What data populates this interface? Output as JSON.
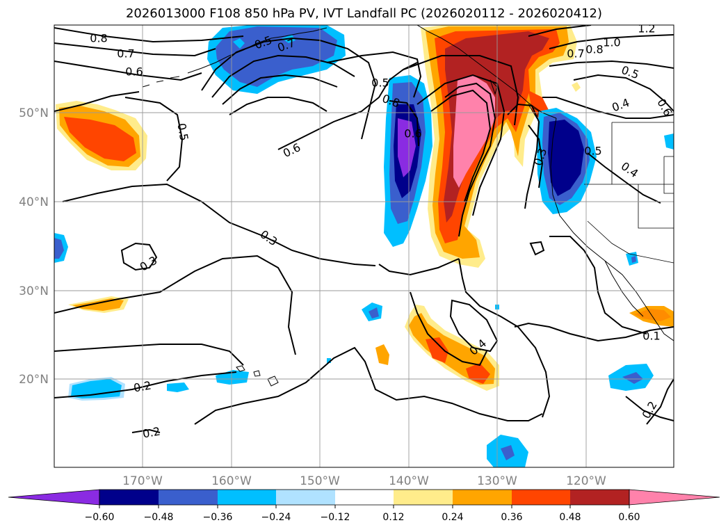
{
  "title": "2026013000 F108 850 hPa PV, IVT Landfall PC (2026020112 - 2026020412)",
  "map": {
    "lat_labels": [
      "50°N",
      "40°N",
      "30°N",
      "20°N"
    ],
    "lon_labels": [
      "170°W",
      "160°W",
      "150°W",
      "140°W",
      "130°W",
      "120°W"
    ],
    "contour_labels": [
      "0.8",
      "0.7",
      "0.6",
      "0.5",
      "0.5",
      "0.7",
      "0.6",
      "0.8",
      "0.6",
      "0.5",
      "0.3",
      "0.3",
      "0.4",
      "0.2",
      "0.2",
      "1.2",
      "0.8",
      "1.0",
      "0.7",
      "0.5",
      "0.4",
      "0.6",
      "0.5",
      "0.3",
      "0.4",
      "0.2",
      "0.1"
    ]
  },
  "colorbar": {
    "ticks": [
      "−0.60",
      "−0.48",
      "−0.36",
      "−0.24",
      "−0.12",
      "0.12",
      "0.24",
      "0.36",
      "0.48",
      "0.60"
    ],
    "colors": [
      "#8a2be2",
      "#00008b",
      "#3a5fcd",
      "#00bfff",
      "#b0e2ff",
      "#ffffff",
      "#ffec8b",
      "#ffa500",
      "#ff4500",
      "#b22222",
      "#ff82ab"
    ]
  }
}
